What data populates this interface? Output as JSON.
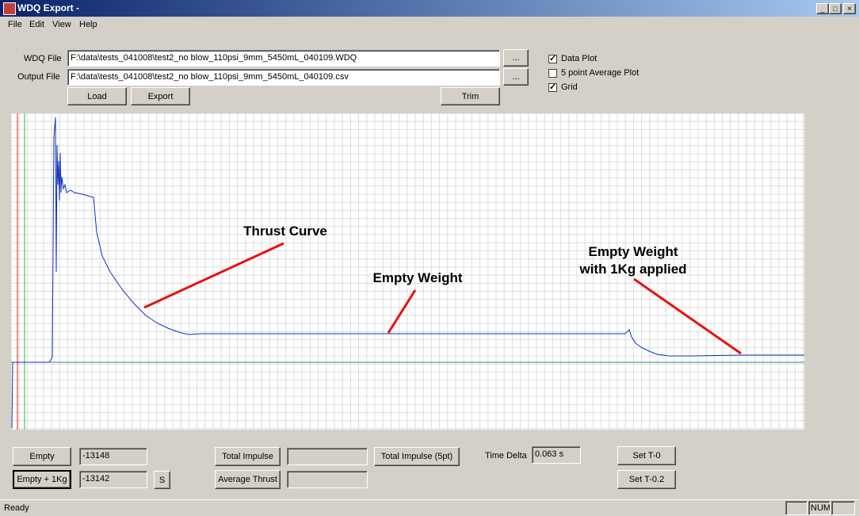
{
  "window": {
    "title": "WDQ Export  -"
  },
  "menu": [
    "File",
    "Edit",
    "View",
    "Help"
  ],
  "files": {
    "wdq_label": "WDQ File",
    "wdq_path": "F:\\data\\tests_041008\\test2_no blow_110psi_9mm_5450mL_040109.WDQ",
    "output_label": "Output File",
    "output_path": "F:\\data\\tests_041008\\test2_no blow_110psi_9mm_5450mL_040109.csv",
    "browse": "..."
  },
  "buttons": {
    "load": "Load",
    "export": "Export",
    "trim": "Trim"
  },
  "options": [
    {
      "label": "Data Plot",
      "checked": true
    },
    {
      "label": "5 point Average Plot",
      "checked": false
    },
    {
      "label": "Grid",
      "checked": true
    }
  ],
  "annotations": {
    "thrust": "Thrust Curve",
    "empty": "Empty Weight",
    "empty_1kg": [
      "Empty Weight",
      "with 1Kg applied"
    ]
  },
  "bottom": {
    "empty": "Empty",
    "empty_value": "-13148",
    "empty_1kg": "Empty + 1Kg",
    "empty_1kg_value": "-13142",
    "s": "S",
    "total_impulse": "Total Impulse",
    "average_thrust": "Average Thrust",
    "total_impulse_5pt": "Total Impulse (5pt)",
    "time_delta_label": "Time Delta",
    "time_delta_value": "0.063 s",
    "set_t0": "Set T-0",
    "set_t02": "Set T-0.2"
  },
  "status": {
    "text": "Ready",
    "num": "NUM"
  }
}
